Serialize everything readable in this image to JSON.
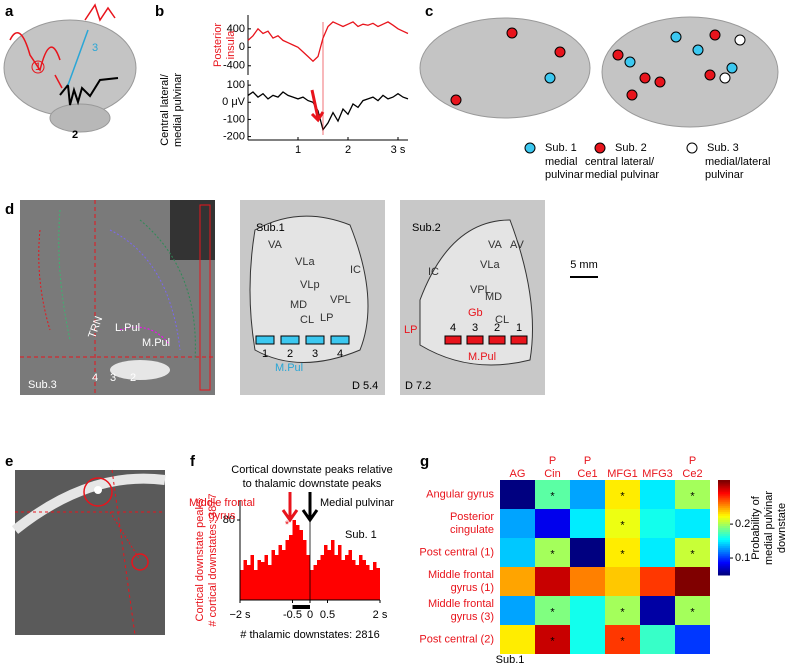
{
  "panel_letters": [
    "a",
    "b",
    "c",
    "d",
    "e",
    "f",
    "g"
  ],
  "a": {
    "labels": [
      "1",
      "3",
      "2"
    ]
  },
  "c": {
    "legend": [
      {
        "subject": "Sub. 1",
        "lines": [
          "medial",
          "pulvinar"
        ]
      },
      {
        "subject": "Sub. 2",
        "lines": [
          "central lateral/",
          "medial pulvinar"
        ]
      },
      {
        "subject": "Sub. 3",
        "lines": [
          "medial/lateral",
          "pulvinar"
        ]
      }
    ]
  },
  "d": {
    "left": {
      "labels": [
        "TRN",
        "L.Pul",
        "M.Pul",
        "4",
        "3",
        "2"
      ],
      "subject": "Sub.3"
    },
    "middle": {
      "subject": "Sub.1",
      "contacts": [
        "1",
        "2",
        "3",
        "4"
      ],
      "region": "M.Pul",
      "depth": "D 5.4",
      "atlas": [
        "VA",
        "VLa",
        "VLp",
        "MD",
        "CL",
        "LP",
        "VPL",
        "IC"
      ]
    },
    "right": {
      "subject": "Sub.2",
      "contacts": [
        "4",
        "3",
        "2",
        "1"
      ],
      "labels": [
        "LP",
        "Gb"
      ],
      "region": "M.Pul",
      "depth": "D 7.2",
      "atlas": [
        "AV",
        "VA",
        "VLa",
        "IC",
        "MD",
        "CL",
        "VPL"
      ]
    },
    "scale": "5 mm"
  },
  "chart_data": [
    {
      "type": "line",
      "ylabel_lines": [
        "Posterior",
        "insula"
      ],
      "color": "#e8141c",
      "x": [
        0,
        0.1,
        0.2,
        0.3,
        0.4,
        0.5,
        0.6,
        0.7,
        0.8,
        0.9,
        1,
        1.1,
        1.2,
        1.3,
        1.4,
        1.5,
        1.6,
        1.7,
        1.8,
        1.9,
        2,
        2.1,
        2.2,
        2.3,
        2.4,
        2.5,
        2.6,
        2.7,
        2.8,
        2.9,
        3,
        3.1,
        3.2
      ],
      "values": [
        150,
        250,
        400,
        300,
        350,
        200,
        250,
        150,
        100,
        50,
        0,
        -100,
        -200,
        -300,
        -200,
        200,
        450,
        550,
        500,
        450,
        500,
        550,
        450,
        500,
        480,
        520,
        450,
        500,
        550,
        480,
        400,
        350,
        300
      ],
      "xlim": [
        0,
        3.2
      ],
      "ylim": [
        -600,
        700
      ],
      "yticks": [
        400,
        0,
        -400
      ]
    },
    {
      "type": "line",
      "ylabel_lines": [
        "Central lateral/",
        "medial pulvinar"
      ],
      "color": "#000000",
      "x": [
        0,
        0.1,
        0.2,
        0.3,
        0.4,
        0.5,
        0.6,
        0.7,
        0.8,
        0.9,
        1,
        1.1,
        1.2,
        1.3,
        1.4,
        1.5,
        1.6,
        1.7,
        1.8,
        1.9,
        2,
        2.1,
        2.2,
        2.3,
        2.4,
        2.5,
        2.6,
        2.7,
        2.8,
        2.9,
        3,
        3.1,
        3.2
      ],
      "values": [
        40,
        60,
        30,
        50,
        20,
        40,
        30,
        60,
        40,
        30,
        20,
        30,
        10,
        0,
        -50,
        -160,
        -120,
        -60,
        -110,
        -40,
        -70,
        -10,
        -30,
        10,
        20,
        30,
        10,
        40,
        20,
        30,
        50,
        30,
        20
      ],
      "xlim": [
        0,
        3.2
      ],
      "ylim": [
        -220,
        130
      ],
      "yticks": [
        100,
        {
          "value": 0,
          "label": "0 μV"
        },
        -100,
        -200
      ],
      "xticks": [
        1,
        2,
        {
          "value": 3,
          "label": "3 s"
        }
      ]
    },
    {
      "type": "histogram",
      "title_lines": [
        "Cortical downstate peaks relative",
        "to thalamic downstate peaks"
      ],
      "annotation_lines": [
        "Middle frontal",
        "gyrus"
      ],
      "medial_label": "Medial pulvinar",
      "subject": "Sub. 1",
      "star": "*",
      "ylabel_lines": [
        "Cortical downstate peaks",
        "# cortical downstates: 3877"
      ],
      "xlabel": "# thalamic downstates: 2816",
      "color": "#ff0000",
      "bins": [
        -2,
        -1.9,
        -1.8,
        -1.7,
        -1.6,
        -1.5,
        -1.4,
        -1.3,
        -1.2,
        -1.1,
        -1,
        -0.9,
        -0.8,
        -0.7,
        -0.6,
        -0.5,
        -0.4,
        -0.3,
        -0.2,
        -0.1,
        0,
        0.1,
        0.2,
        0.3,
        0.4,
        0.5,
        0.6,
        0.7,
        0.8,
        0.9,
        1,
        1.1,
        1.2,
        1.3,
        1.4,
        1.5,
        1.6,
        1.7,
        1.8,
        1.9,
        2
      ],
      "values": [
        30,
        40,
        35,
        45,
        30,
        40,
        38,
        45,
        35,
        50,
        45,
        55,
        50,
        60,
        65,
        80,
        75,
        70,
        60,
        45,
        30,
        35,
        40,
        45,
        55,
        50,
        60,
        45,
        55,
        40,
        45,
        50,
        40,
        35,
        45,
        40,
        35,
        30,
        38,
        32
      ],
      "xlim": [
        -2,
        2
      ],
      "xticks": [
        {
          "value": -2,
          "label": "−2 s"
        },
        -0.5,
        0,
        0.5,
        {
          "value": 2,
          "label": "2 s"
        }
      ],
      "ylim": [
        0,
        100
      ],
      "yticks": [
        80
      ]
    },
    {
      "type": "heatmap",
      "colormap": "jet",
      "rows": [
        [
          "Angular gyrus"
        ],
        [
          "Posterior",
          "cingulate"
        ],
        [
          "Post central (1)"
        ],
        [
          "Middle frontal",
          "gyrus (1)"
        ],
        [
          "Middle frontal",
          "gyrus (3)"
        ],
        [
          "Post central (2)"
        ]
      ],
      "columns": [
        [
          "AG"
        ],
        [
          "P",
          "Cin"
        ],
        [
          "P",
          "Ce1"
        ],
        [
          "MFG1"
        ],
        [
          "MFG3"
        ],
        [
          "P",
          "Ce2"
        ]
      ],
      "values": [
        [
          0.05,
          0.18,
          0.13,
          0.23,
          0.15,
          0.2
        ],
        [
          0.13,
          0.08,
          0.15,
          0.22,
          0.16,
          0.15
        ],
        [
          0.14,
          0.2,
          0.05,
          0.23,
          0.15,
          0.21
        ],
        [
          0.25,
          0.31,
          0.26,
          0.24,
          0.28,
          0.33
        ],
        [
          0.13,
          0.19,
          0.16,
          0.2,
          0.06,
          0.2
        ],
        [
          0.23,
          0.31,
          0.16,
          0.28,
          0.17,
          0.1
        ]
      ],
      "stars": [
        [
          null,
          "*",
          null,
          "*",
          null,
          "*"
        ],
        [
          null,
          null,
          null,
          "*",
          null,
          null
        ],
        [
          null,
          "*",
          null,
          "*",
          null,
          "*"
        ],
        [
          null,
          null,
          null,
          null,
          null,
          null
        ],
        [
          null,
          "*",
          null,
          "*",
          null,
          "*"
        ],
        [
          null,
          "*",
          null,
          "*",
          null,
          null
        ]
      ],
      "clim": [
        0.05,
        0.33
      ],
      "cticks": [
        0.1,
        0.2
      ],
      "colorbar_label_lines": [
        "Probability of",
        "medial pulvinar",
        "downstate"
      ],
      "subject": "Sub.1"
    }
  ]
}
